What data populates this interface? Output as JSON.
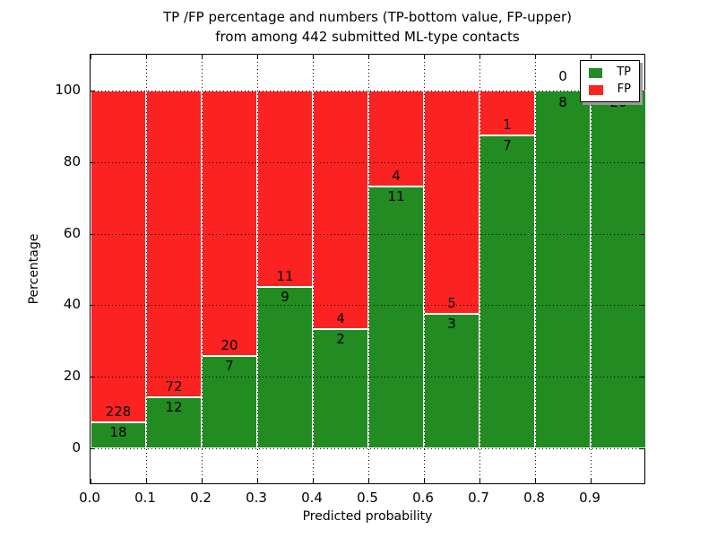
{
  "title": {
    "line1": "TP /FP percentage and numbers (TP-bottom value, FP-upper)",
    "line2": "from among 442 submitted ML-type contacts"
  },
  "axes": {
    "xlabel": "Predicted probability",
    "ylabel": "Percentage",
    "x_tick_labels": [
      "0.0",
      "0.1",
      "0.2",
      "0.3",
      "0.4",
      "0.5",
      "0.6",
      "0.7",
      "0.8",
      "0.9"
    ],
    "y_tick_labels": [
      "0",
      "20",
      "40",
      "60",
      "80",
      "100"
    ],
    "y_tick_values": [
      0,
      20,
      40,
      60,
      80,
      100
    ]
  },
  "legend": {
    "items": [
      {
        "label": "TP",
        "color": "#228b22"
      },
      {
        "label": "FP",
        "color": "#fb2222"
      }
    ]
  },
  "chart_data": {
    "type": "bar",
    "stacked": true,
    "percentage": true,
    "title": "TP /FP percentage and numbers (TP-bottom value, FP-upper) from among 442 submitted ML-type contacts",
    "xlabel": "Predicted probability",
    "ylabel": "Percentage",
    "xlim": [
      0.0,
      1.0
    ],
    "ylim": [
      -10,
      110
    ],
    "grid": "dotted, drawn over bars",
    "legend_position": "upper right",
    "total_contacts": 442,
    "colors": {
      "tp": "#228b22",
      "fp": "#fb2222",
      "bar_edge": "#ffffff"
    },
    "bins": [
      {
        "range": [
          0.0,
          0.1
        ],
        "tp": 18,
        "fp": 228,
        "tp_pct": 7.3
      },
      {
        "range": [
          0.1,
          0.2
        ],
        "tp": 12,
        "fp": 72,
        "tp_pct": 14.3
      },
      {
        "range": [
          0.2,
          0.3
        ],
        "tp": 7,
        "fp": 20,
        "tp_pct": 25.9
      },
      {
        "range": [
          0.3,
          0.4
        ],
        "tp": 9,
        "fp": 11,
        "tp_pct": 45.0
      },
      {
        "range": [
          0.4,
          0.5
        ],
        "tp": 2,
        "fp": 4,
        "tp_pct": 33.3
      },
      {
        "range": [
          0.5,
          0.6
        ],
        "tp": 11,
        "fp": 4,
        "tp_pct": 73.3
      },
      {
        "range": [
          0.6,
          0.7
        ],
        "tp": 3,
        "fp": 5,
        "tp_pct": 37.5
      },
      {
        "range": [
          0.7,
          0.8
        ],
        "tp": 7,
        "fp": 1,
        "tp_pct": 87.5
      },
      {
        "range": [
          0.8,
          0.9
        ],
        "tp": 8,
        "fp": 0,
        "tp_pct": 100.0
      },
      {
        "range": [
          0.9,
          1.0
        ],
        "tp": 20,
        "fp": 0,
        "tp_pct": 100.0
      }
    ]
  }
}
